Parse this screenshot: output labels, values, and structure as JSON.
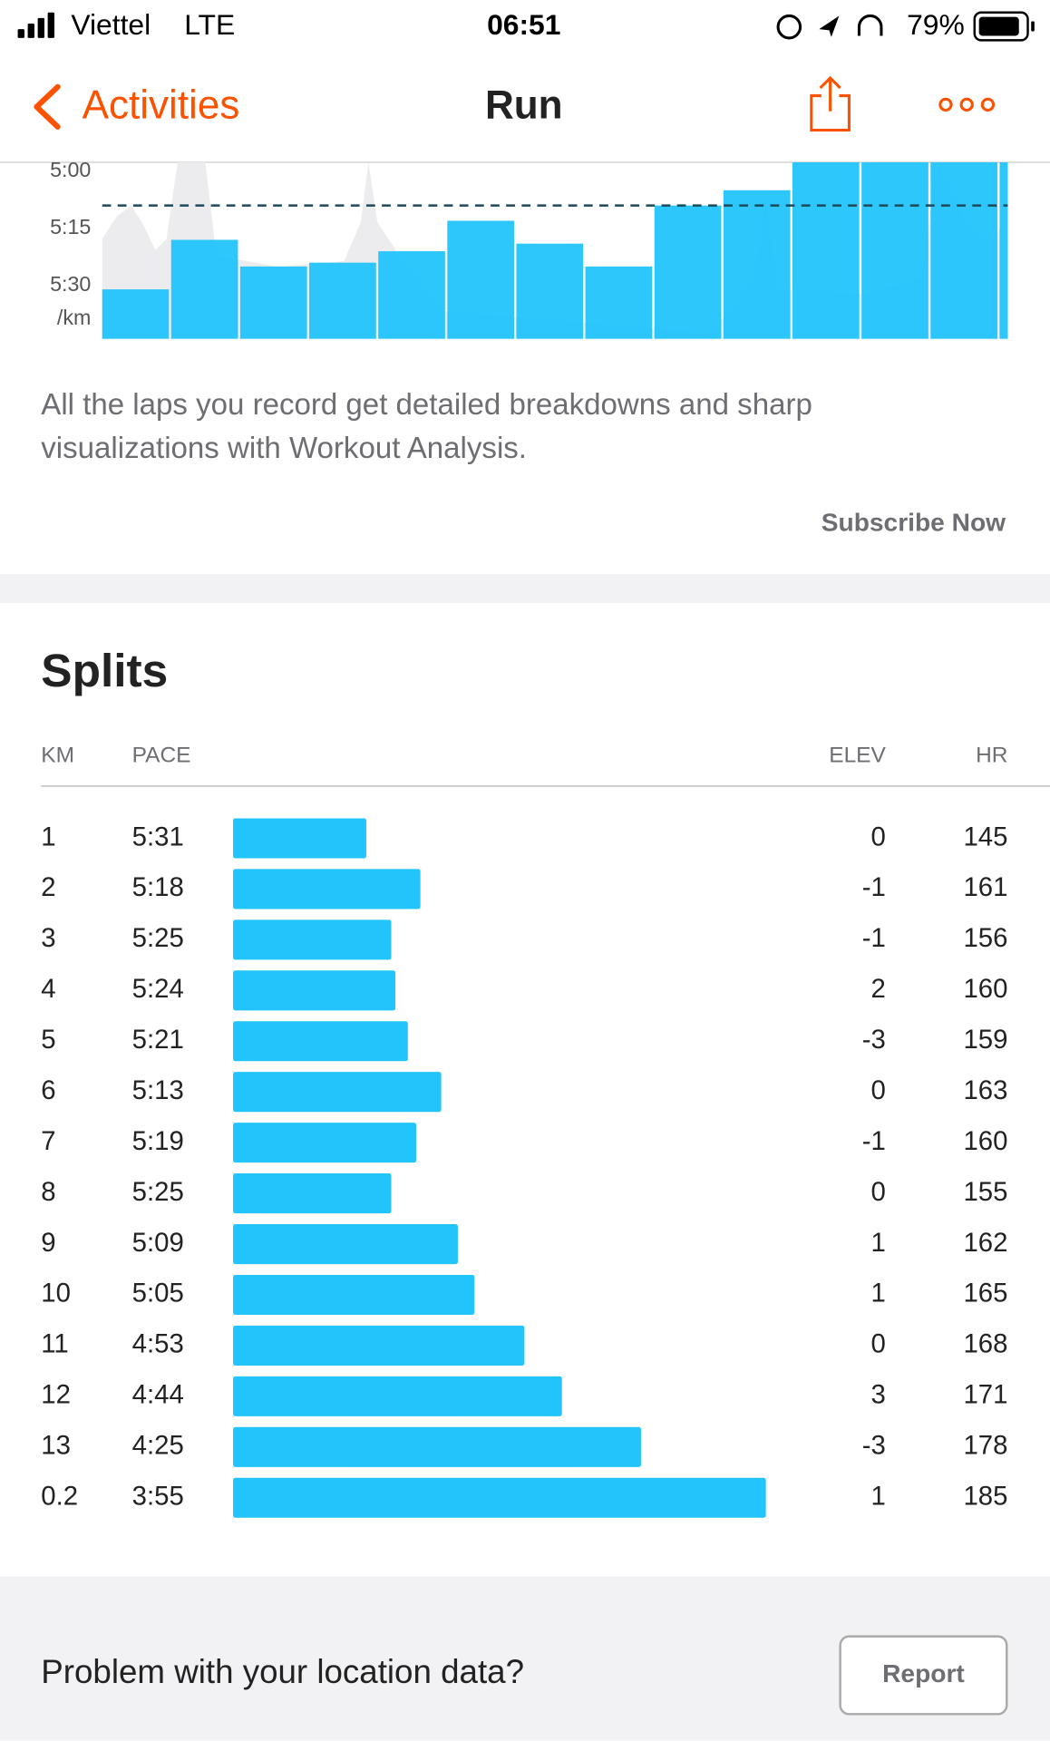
{
  "status_bar": {
    "carrier": "Viettel",
    "network": "LTE",
    "time": "06:51",
    "battery": "79%"
  },
  "nav": {
    "back": "Activities",
    "title": "Run"
  },
  "lap_chart": {
    "yticks": [
      {
        "value": 300,
        "label": "5:00"
      },
      {
        "value": 315,
        "label": "5:15"
      },
      {
        "value": 330,
        "label": "5:30"
      }
    ],
    "y_unit": "/km",
    "reference_line": 309
  },
  "upsell": {
    "lines": [
      "All the laps you record get detailed breakdowns and sharp",
      "visualizations with Workout Analysis."
    ],
    "action": "Subscribe Now"
  },
  "splits": {
    "title": "Splits",
    "columns": [
      "KM",
      "PACE",
      "ELEV",
      "HR"
    ],
    "rows": [
      {
        "km": "1",
        "pace": {
          "value": 331,
          "label": "5:31"
        },
        "elev": 0,
        "hr": 145
      },
      {
        "km": "2",
        "pace": {
          "value": 318,
          "label": "5:18"
        },
        "elev": -1,
        "hr": 161
      },
      {
        "km": "3",
        "pace": {
          "value": 325,
          "label": "5:25"
        },
        "elev": -1,
        "hr": 156
      },
      {
        "km": "4",
        "pace": {
          "value": 324,
          "label": "5:24"
        },
        "elev": 2,
        "hr": 160
      },
      {
        "km": "5",
        "pace": {
          "value": 321,
          "label": "5:21"
        },
        "elev": -3,
        "hr": 159
      },
      {
        "km": "6",
        "pace": {
          "value": 313,
          "label": "5:13"
        },
        "elev": 0,
        "hr": 163
      },
      {
        "km": "7",
        "pace": {
          "value": 319,
          "label": "5:19"
        },
        "elev": -1,
        "hr": 160
      },
      {
        "km": "8",
        "pace": {
          "value": 325,
          "label": "5:25"
        },
        "elev": 0,
        "hr": 155
      },
      {
        "km": "9",
        "pace": {
          "value": 309,
          "label": "5:09"
        },
        "elev": 1,
        "hr": 162
      },
      {
        "km": "10",
        "pace": {
          "value": 305,
          "label": "5:05"
        },
        "elev": 1,
        "hr": 165
      },
      {
        "km": "11",
        "pace": {
          "value": 293,
          "label": "4:53"
        },
        "elev": 0,
        "hr": 168
      },
      {
        "km": "12",
        "pace": {
          "value": 284,
          "label": "4:44"
        },
        "elev": 3,
        "hr": 171
      },
      {
        "km": "13",
        "pace": {
          "value": 265,
          "label": "4:25"
        },
        "elev": -3,
        "hr": 178
      },
      {
        "km": "0.2",
        "pace": {
          "value": 235,
          "label": "3:55"
        },
        "elev": 1,
        "hr": 185
      }
    ]
  },
  "report": {
    "text": "Problem with your location data?",
    "action": "Report"
  }
}
